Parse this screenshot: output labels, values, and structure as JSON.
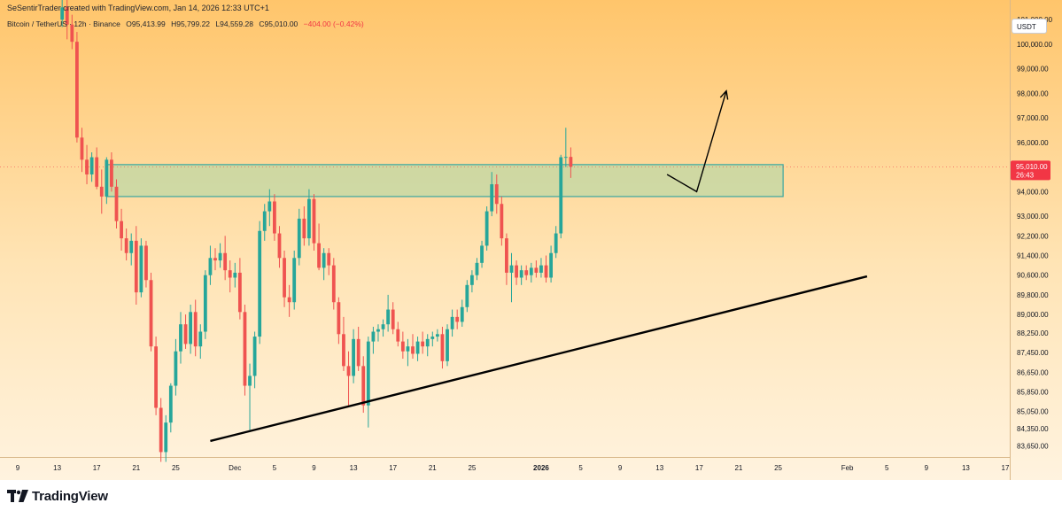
{
  "header": {
    "creator_line": "SeSentirTrader created with TradingView.com, Jan 14, 2026 12:33 UTC+1",
    "symbol": "Bitcoin / TetherUS · 12h · Binance",
    "open": "O95,413.99",
    "high": "H95,799.22",
    "low": "L94,559.28",
    "close": "C95,010.00",
    "change": "−404.00 (−0.42%)"
  },
  "currency_button": "USDT",
  "footer": {
    "logo_text": "TradingView"
  },
  "colors": {
    "bull": "#26a69a",
    "bear": "#ef5350",
    "zone_fill": "#a7d7a8",
    "zone_border": "#3aa6a0",
    "price_label": "#f23645",
    "background_top": "#ffc56b",
    "background_bottom": "#fff3df"
  },
  "chart_data": {
    "type": "candlestick",
    "ylim": [
      83200,
      101800
    ],
    "y_ticks": [
      "101,000.00",
      "100,000.00",
      "99,000.00",
      "98,000.00",
      "97,000.00",
      "96,000.00",
      "94,000.00",
      "93,000.00",
      "92,200.00",
      "91,400.00",
      "90,600.00",
      "89,800.00",
      "89,000.00",
      "88,250.00",
      "87,450.00",
      "86,650.00",
      "85,850.00",
      "85,050.00",
      "84,350.00",
      "83,650.00"
    ],
    "x_ticks": [
      {
        "label": "9",
        "t": 0
      },
      {
        "label": "13",
        "t": 8
      },
      {
        "label": "17",
        "t": 16
      },
      {
        "label": "21",
        "t": 24
      },
      {
        "label": "25",
        "t": 32
      },
      {
        "label": "Dec",
        "t": 44
      },
      {
        "label": "5",
        "t": 52
      },
      {
        "label": "9",
        "t": 60
      },
      {
        "label": "13",
        "t": 68
      },
      {
        "label": "17",
        "t": 76
      },
      {
        "label": "21",
        "t": 84
      },
      {
        "label": "25",
        "t": 92
      },
      {
        "label": "2026",
        "t": 106
      },
      {
        "label": "5",
        "t": 114
      },
      {
        "label": "9",
        "t": 122
      },
      {
        "label": "13",
        "t": 130
      },
      {
        "label": "17",
        "t": 138
      },
      {
        "label": "21",
        "t": 146
      },
      {
        "label": "25",
        "t": 154
      },
      {
        "label": "Feb",
        "t": 168
      },
      {
        "label": "5",
        "t": 176
      },
      {
        "label": "9",
        "t": 184
      },
      {
        "label": "13",
        "t": 192
      },
      {
        "label": "17",
        "t": 200
      }
    ],
    "bold_x_ticks": [
      "2026"
    ],
    "last_price": {
      "value": 95010,
      "label": "95,010.00",
      "countdown": "26:43"
    },
    "resistance_zone": {
      "low": 93800,
      "high": 95100,
      "t_start": 18,
      "t_end": 155
    },
    "trendline": {
      "t1": 39,
      "p1": 83850,
      "t2": 172,
      "p2": 90550
    },
    "projection_arrow": {
      "points": [
        [
          131.5,
          94700
        ],
        [
          137.5,
          94000
        ],
        [
          143.5,
          98100
        ]
      ]
    },
    "candles": [
      [
        101000,
        101800,
        100700,
        101500
      ],
      [
        101500,
        101900,
        100200,
        100800
      ],
      [
        100800,
        101200,
        99800,
        100100
      ],
      [
        100100,
        100500,
        96000,
        96200
      ],
      [
        96200,
        96600,
        94800,
        95300
      ],
      [
        95300,
        95900,
        94300,
        94700
      ],
      [
        94700,
        95600,
        94400,
        95400
      ],
      [
        95400,
        95800,
        94100,
        94200
      ],
      [
        94200,
        94900,
        93100,
        93800
      ],
      [
        93800,
        95400,
        93500,
        95300
      ],
      [
        95300,
        95600,
        94000,
        94200
      ],
      [
        94200,
        94500,
        92500,
        92800
      ],
      [
        92800,
        93300,
        91600,
        92100
      ],
      [
        92100,
        92500,
        91200,
        91500
      ],
      [
        91500,
        92300,
        91000,
        92000
      ],
      [
        92000,
        92600,
        89400,
        89900
      ],
      [
        89900,
        92100,
        89700,
        91800
      ],
      [
        91800,
        92000,
        90100,
        90400
      ],
      [
        90400,
        90700,
        87500,
        87700
      ],
      [
        87700,
        88100,
        84900,
        85200
      ],
      [
        85200,
        85600,
        83000,
        83400
      ],
      [
        83400,
        84900,
        83000,
        84600
      ],
      [
        84600,
        86200,
        84200,
        86100
      ],
      [
        86100,
        88000,
        85700,
        87500
      ],
      [
        87500,
        89100,
        87000,
        88600
      ],
      [
        88600,
        89000,
        87600,
        87800
      ],
      [
        87800,
        89400,
        87400,
        89100
      ],
      [
        89100,
        89600,
        87300,
        87700
      ],
      [
        87700,
        88600,
        87200,
        88300
      ],
      [
        88300,
        90800,
        88000,
        90600
      ],
      [
        90600,
        91800,
        90200,
        91300
      ],
      [
        91300,
        91700,
        90800,
        91200
      ],
      [
        91200,
        91900,
        90900,
        91500
      ],
      [
        91500,
        92200,
        90400,
        90800
      ],
      [
        90800,
        91200,
        89900,
        90500
      ],
      [
        90500,
        91100,
        90100,
        90700
      ],
      [
        90700,
        91300,
        88800,
        89100
      ],
      [
        89100,
        89400,
        85700,
        86100
      ],
      [
        86100,
        87000,
        84300,
        86500
      ],
      [
        86500,
        88300,
        86000,
        88100
      ],
      [
        88100,
        92800,
        87800,
        92400
      ],
      [
        92400,
        93500,
        92000,
        93200
      ],
      [
        93200,
        94100,
        92600,
        93600
      ],
      [
        93600,
        93900,
        92000,
        92300
      ],
      [
        92300,
        92600,
        90900,
        91300
      ],
      [
        91300,
        91600,
        89300,
        89700
      ],
      [
        89700,
        90200,
        88900,
        89500
      ],
      [
        89500,
        91600,
        89200,
        91300
      ],
      [
        91300,
        93300,
        91000,
        92900
      ],
      [
        92900,
        93400,
        91800,
        92100
      ],
      [
        92100,
        94100,
        91800,
        93700
      ],
      [
        93700,
        93900,
        91600,
        91900
      ],
      [
        91900,
        92700,
        90800,
        90900
      ],
      [
        90900,
        91700,
        90400,
        91500
      ],
      [
        91500,
        91700,
        90600,
        91000
      ],
      [
        91000,
        91300,
        89200,
        89500
      ],
      [
        89500,
        89700,
        87800,
        88200
      ],
      [
        88200,
        88900,
        86700,
        86900
      ],
      [
        86900,
        87500,
        85300,
        86500
      ],
      [
        86500,
        88400,
        86200,
        88000
      ],
      [
        88000,
        88500,
        86700,
        86900
      ],
      [
        86900,
        87300,
        85000,
        85300
      ],
      [
        85300,
        88100,
        84400,
        87900
      ],
      [
        87900,
        88500,
        87400,
        88300
      ],
      [
        88300,
        88600,
        87900,
        88400
      ],
      [
        88400,
        88800,
        88100,
        88600
      ],
      [
        88600,
        89800,
        88300,
        89200
      ],
      [
        89200,
        89500,
        88200,
        88400
      ],
      [
        88400,
        88700,
        87700,
        87900
      ],
      [
        87900,
        88300,
        87200,
        87500
      ],
      [
        87500,
        88000,
        86900,
        87700
      ],
      [
        87700,
        88200,
        87200,
        87400
      ],
      [
        87400,
        88100,
        87100,
        87900
      ],
      [
        87900,
        88300,
        87400,
        87700
      ],
      [
        87700,
        88200,
        87300,
        88000
      ],
      [
        88000,
        88300,
        87700,
        88100
      ],
      [
        88100,
        88400,
        87900,
        88200
      ],
      [
        88200,
        88500,
        86800,
        87100
      ],
      [
        87100,
        88600,
        86900,
        88400
      ],
      [
        88400,
        89200,
        88100,
        88900
      ],
      [
        88900,
        89200,
        88400,
        88700
      ],
      [
        88700,
        89600,
        88500,
        89300
      ],
      [
        89300,
        90400,
        89100,
        90200
      ],
      [
        90200,
        90800,
        89900,
        90600
      ],
      [
        90600,
        91300,
        90400,
        91100
      ],
      [
        91100,
        92000,
        90900,
        91800
      ],
      [
        91800,
        93400,
        91600,
        93200
      ],
      [
        93200,
        94800,
        93000,
        94300
      ],
      [
        94300,
        94700,
        93100,
        93500
      ],
      [
        93500,
        93800,
        91800,
        92100
      ],
      [
        92100,
        92300,
        90200,
        90700
      ],
      [
        90700,
        91500,
        89500,
        91000
      ],
      [
        91000,
        91200,
        90200,
        90500
      ],
      [
        90500,
        91000,
        90200,
        90800
      ],
      [
        90800,
        91000,
        90400,
        90600
      ],
      [
        90600,
        91100,
        90300,
        90900
      ],
      [
        90900,
        91200,
        90500,
        90700
      ],
      [
        90700,
        91300,
        90500,
        91000
      ],
      [
        91000,
        91400,
        90300,
        90500
      ],
      [
        90500,
        91800,
        90300,
        91500
      ],
      [
        91500,
        92600,
        91300,
        92300
      ],
      [
        92300,
        95500,
        92100,
        95400
      ],
      [
        95400,
        96600,
        95000,
        95414
      ],
      [
        95414,
        95800,
        94559,
        95010
      ]
    ]
  }
}
